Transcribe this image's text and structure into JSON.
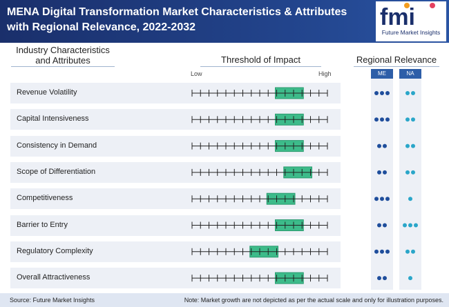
{
  "header": {
    "title": "MENA Digital Transformation Market Characteristics & Attributes with Regional Relevance, 2022-2032",
    "logo_mark": "fmi",
    "logo_text": "Future Market Insights"
  },
  "columns": {
    "industry": "Industry Characteristics and Attributes",
    "threshold": "Threshold of Impact",
    "regional": "Regional Relevance"
  },
  "scale": {
    "low": "Low",
    "high": "High"
  },
  "regions": [
    "ME",
    "NA"
  ],
  "colors": {
    "accent": "#3dbb8a",
    "accent_border": "#2a9a6e",
    "header": "#1a2f6b",
    "dot_me": "#1f4e9c",
    "dot_na": "#2aa6c9",
    "row_bg": "#edf0f6"
  },
  "chart_data": {
    "type": "table",
    "scale_ticks": 17,
    "rows": [
      {
        "label": "Revenue Volatility",
        "impact_start": 11,
        "impact_end": 14,
        "me_dots": 3,
        "na_dots": 2
      },
      {
        "label": "Capital Intensiveness",
        "impact_start": 11,
        "impact_end": 14,
        "me_dots": 3,
        "na_dots": 2
      },
      {
        "label": "Consistency in Demand",
        "impact_start": 11,
        "impact_end": 14,
        "me_dots": 2,
        "na_dots": 2
      },
      {
        "label": "Scope of Differentiation",
        "impact_start": 12,
        "impact_end": 15,
        "me_dots": 2,
        "na_dots": 2
      },
      {
        "label": "Competitiveness",
        "impact_start": 10,
        "impact_end": 13,
        "me_dots": 3,
        "na_dots": 1
      },
      {
        "label": "Barrier to Entry",
        "impact_start": 11,
        "impact_end": 14,
        "me_dots": 2,
        "na_dots": 3
      },
      {
        "label": "Regulatory Complexity",
        "impact_start": 8,
        "impact_end": 11,
        "me_dots": 3,
        "na_dots": 2
      },
      {
        "label": "Overall Attractiveness",
        "impact_start": 11,
        "impact_end": 14,
        "me_dots": 2,
        "na_dots": 1
      }
    ]
  },
  "footer": {
    "source": "Source: Future Market Insights",
    "note": "Note: Market growth are not depicted as per the actual scale and only for illustration purposes."
  }
}
